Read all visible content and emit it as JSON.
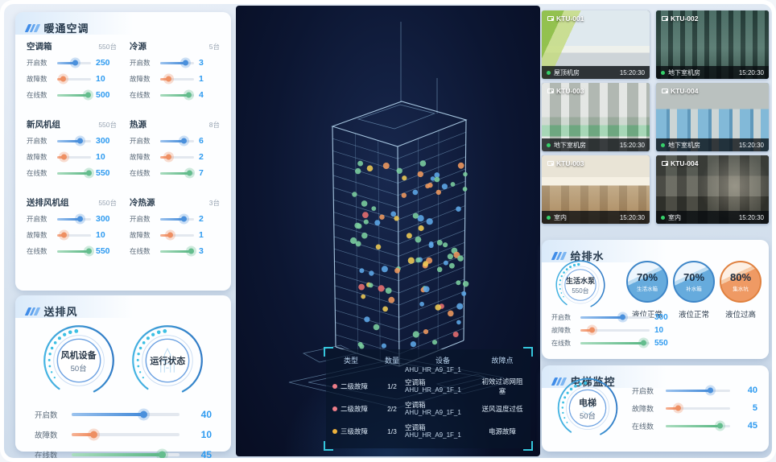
{
  "colors": {
    "accent": "#2f8fe8",
    "slider_blue": "#4289d8",
    "slider_orange": "#ee8557",
    "slider_green": "#58b683",
    "value_text": "#2f9bf0",
    "bracket_cyan": "#35c6dc",
    "online_dot": "#35d06a",
    "center_bg": "#0c1632"
  },
  "hvac": {
    "title": "暖通空调",
    "groups": [
      {
        "name": "空调箱",
        "count": "550台",
        "metrics": [
          {
            "label": "开启数",
            "value": "250",
            "pct": 55,
            "color": "blue"
          },
          {
            "label": "故障数",
            "value": "10",
            "pct": 20,
            "color": "orange"
          },
          {
            "label": "在线数",
            "value": "500",
            "pct": 92,
            "color": "green"
          }
        ]
      },
      {
        "name": "冷源",
        "count": "5台",
        "metrics": [
          {
            "label": "开启数",
            "value": "3",
            "pct": 75,
            "color": "blue"
          },
          {
            "label": "故障数",
            "value": "1",
            "pct": 25,
            "color": "orange"
          },
          {
            "label": "在线数",
            "value": "4",
            "pct": 86,
            "color": "green"
          }
        ]
      },
      {
        "name": "新风机组",
        "count": "550台",
        "metrics": [
          {
            "label": "开启数",
            "value": "300",
            "pct": 70,
            "color": "blue"
          },
          {
            "label": "故障数",
            "value": "10",
            "pct": 22,
            "color": "orange"
          },
          {
            "label": "在线数",
            "value": "550",
            "pct": 95,
            "color": "green"
          }
        ]
      },
      {
        "name": "热源",
        "count": "8台",
        "metrics": [
          {
            "label": "开启数",
            "value": "6",
            "pct": 72,
            "color": "blue"
          },
          {
            "label": "故障数",
            "value": "2",
            "pct": 25,
            "color": "orange"
          },
          {
            "label": "在线数",
            "value": "7",
            "pct": 88,
            "color": "green"
          }
        ]
      },
      {
        "name": "送排风机组",
        "count": "550台",
        "metrics": [
          {
            "label": "开启数",
            "value": "300",
            "pct": 70,
            "color": "blue"
          },
          {
            "label": "故障数",
            "value": "10",
            "pct": 22,
            "color": "orange"
          },
          {
            "label": "在线数",
            "value": "550",
            "pct": 95,
            "color": "green"
          }
        ]
      },
      {
        "name": "冷热源",
        "count": "3台",
        "metrics": [
          {
            "label": "开启数",
            "value": "2",
            "pct": 72,
            "color": "blue"
          },
          {
            "label": "故障数",
            "value": "1",
            "pct": 30,
            "color": "orange"
          },
          {
            "label": "在线数",
            "value": "3",
            "pct": 92,
            "color": "green"
          }
        ]
      }
    ]
  },
  "fans": {
    "title": "送排风",
    "gauge1": {
      "line1": "风机设备",
      "line2": "50台"
    },
    "gauge2": {
      "line1": "运行状态",
      "line2": ""
    },
    "metrics": [
      {
        "label": "开启数",
        "value": "40",
        "pct": 68,
        "color": "blue"
      },
      {
        "label": "故障数",
        "value": "10",
        "pct": 22,
        "color": "orange"
      },
      {
        "label": "在线数",
        "value": "45",
        "pct": 85,
        "color": "green"
      }
    ]
  },
  "building": {
    "dot_palette": [
      "#7ccf9f",
      "#5fa8e8",
      "#f0cc55",
      "#f09a5f",
      "#e87070"
    ],
    "table": {
      "headers": [
        "类型",
        "数量",
        "设备",
        "故障点"
      ],
      "partial_device": "AHU_HR_A9_1F_1",
      "rows": [
        {
          "dot": "#ed7d88",
          "type": "二级故障",
          "qty": "1/2",
          "device1": "空调箱",
          "device2": "AHU_HR_A9_1F_1",
          "fault": "初效过滤网阻塞"
        },
        {
          "dot": "#ed7d88",
          "type": "二级故障",
          "qty": "2/2",
          "device1": "空调箱",
          "device2": "AHU_HR_A9_1F_1",
          "fault": "送风温度过低"
        },
        {
          "dot": "#edb23c",
          "type": "三级故障",
          "qty": "1/3",
          "device1": "空调箱",
          "device2": "AHU_HR_A9_1F_1",
          "fault": "电源故障"
        }
      ]
    }
  },
  "monitor": {
    "cameras": [
      {
        "id": "KTU-001",
        "location": "屋顶机房",
        "time": "15:20:30",
        "scene": "rooftop"
      },
      {
        "id": "KTU-002",
        "location": "地下室机房",
        "time": "15:20:30",
        "scene": "pumps"
      },
      {
        "id": "KTU-003",
        "location": "地下室机房",
        "time": "15:20:30",
        "scene": "machine"
      },
      {
        "id": "KTU-004",
        "location": "地下室机房",
        "time": "15:20:30",
        "scene": "corridor"
      },
      {
        "id": "KTU-003",
        "location": "室内",
        "time": "15:20:30",
        "scene": "office"
      },
      {
        "id": "KTU-004",
        "location": "室内",
        "time": "15:20:30",
        "scene": "office2"
      }
    ]
  },
  "water": {
    "title": "给排水",
    "gauge": {
      "line1": "生活水泵",
      "line2": "550台"
    },
    "metrics": [
      {
        "label": "开启数",
        "value": "300",
        "pct": 62,
        "color": "blue"
      },
      {
        "label": "故障数",
        "value": "10",
        "pct": 18,
        "color": "orange"
      },
      {
        "label": "在线数",
        "value": "550",
        "pct": 92,
        "color": "green"
      }
    ],
    "tanks": [
      {
        "pct": "70%",
        "name": "生活水箱",
        "status": "液位正常",
        "theme": "blue"
      },
      {
        "pct": "70%",
        "name": "补水箱",
        "status": "液位正常",
        "theme": "blue"
      },
      {
        "pct": "80%",
        "name": "集水坑",
        "status": "液位过高",
        "theme": "orange"
      }
    ]
  },
  "elevator": {
    "title": "电梯监控",
    "gauge": {
      "line1": "电梯",
      "line2": "50台"
    },
    "metrics": [
      {
        "label": "开启数",
        "value": "40",
        "pct": 70,
        "color": "blue"
      },
      {
        "label": "故障数",
        "value": "5",
        "pct": 20,
        "color": "orange"
      },
      {
        "label": "在线数",
        "value": "45",
        "pct": 85,
        "color": "green"
      }
    ]
  }
}
